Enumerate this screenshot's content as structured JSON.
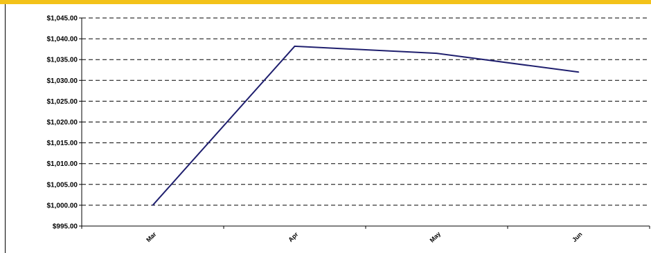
{
  "chart_data": {
    "type": "line",
    "title": "",
    "xlabel": "",
    "ylabel": "",
    "categories": [
      "Mar",
      "Apr",
      "May",
      "Jun"
    ],
    "series": [
      {
        "values": [
          1000.0,
          1038.2,
          1036.5,
          1032.0
        ]
      }
    ],
    "ylim": [
      995,
      1045
    ],
    "ytick_step": 5,
    "ytick_labels": [
      "$995.00",
      "$1,000.00",
      "$1,005.00",
      "$1,010.00",
      "$1,015.00",
      "$1,020.00",
      "$1,025.00",
      "$1,030.00",
      "$1,035.00",
      "$1,040.00",
      "$1,045.00"
    ],
    "grid": true,
    "grid_style": "dashed",
    "legend": "none"
  },
  "colors": {
    "line": "#1f1f6e",
    "grid": "#000000",
    "axis": "#000000",
    "top_band": "#f3c21a"
  }
}
